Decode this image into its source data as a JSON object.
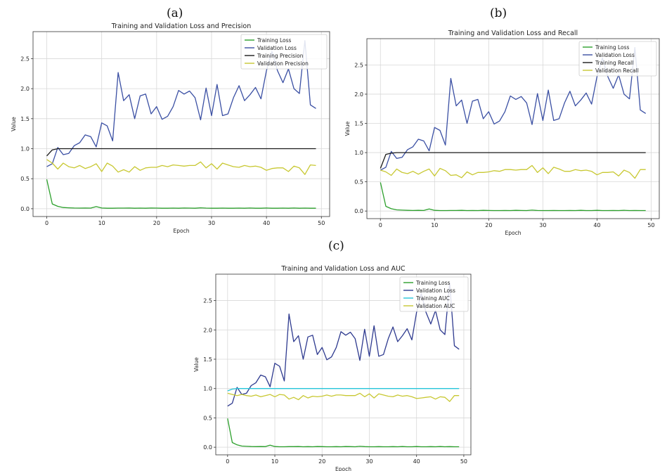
{
  "panels": [
    {
      "letter": "(a)"
    },
    {
      "letter": "(b)"
    },
    {
      "letter": "(c)"
    }
  ],
  "colors": {
    "training_loss": "#2ca02c",
    "validation_loss": "#3a4fa3",
    "training_metric_black": "#1a1a1a",
    "training_auc": "#26c6da",
    "validation_metric": "#c8c832",
    "grid": "#d8d8d8"
  },
  "chart_data": [
    {
      "type": "line",
      "title": "Training and Validation Loss and Precision",
      "xlabel": "Epoch",
      "ylabel": "Value",
      "xlim": [
        -2.5,
        51.5
      ],
      "ylim": [
        -0.13,
        2.95
      ],
      "xticks": [
        0,
        10,
        20,
        30,
        40,
        50
      ],
      "yticks": [
        0.0,
        0.5,
        1.0,
        1.5,
        2.0,
        2.5
      ],
      "grid": true,
      "legend": "top-right",
      "series": [
        {
          "name": "Training Loss",
          "color": "#2ca02c",
          "values": [
            0.49,
            0.08,
            0.04,
            0.02,
            0.015,
            0.012,
            0.01,
            0.012,
            0.01,
            0.035,
            0.012,
            0.008,
            0.008,
            0.01,
            0.01,
            0.012,
            0.008,
            0.01,
            0.008,
            0.012,
            0.01,
            0.008,
            0.008,
            0.01,
            0.008,
            0.012,
            0.01,
            0.008,
            0.015,
            0.01,
            0.008,
            0.008,
            0.01,
            0.008,
            0.008,
            0.01,
            0.008,
            0.012,
            0.008,
            0.008,
            0.012,
            0.008,
            0.008,
            0.01,
            0.008,
            0.012,
            0.008,
            0.01,
            0.008,
            0.008
          ]
        },
        {
          "name": "Validation Loss",
          "color": "#3a4fa3",
          "values": [
            0.7,
            0.75,
            1.02,
            0.9,
            0.92,
            1.05,
            1.1,
            1.23,
            1.2,
            1.03,
            1.43,
            1.38,
            1.13,
            2.27,
            1.8,
            1.9,
            1.5,
            1.88,
            1.91,
            1.58,
            1.7,
            1.49,
            1.54,
            1.7,
            1.97,
            1.91,
            1.96,
            1.85,
            1.48,
            2.01,
            1.55,
            2.07,
            1.55,
            1.58,
            1.85,
            2.05,
            1.8,
            1.9,
            2.02,
            1.83,
            2.3,
            2.62,
            2.3,
            2.1,
            2.33,
            2.0,
            1.92,
            2.8,
            1.73,
            1.67
          ]
        },
        {
          "name": "Training Precision",
          "color": "#1a1a1a",
          "values": [
            0.88,
            0.98,
            1.0,
            1.0,
            1.0,
            1.0,
            1.0,
            1.0,
            1.0,
            1.0,
            1.0,
            1.0,
            1.0,
            1.0,
            1.0,
            1.0,
            1.0,
            1.0,
            1.0,
            1.0,
            1.0,
            1.0,
            1.0,
            1.0,
            1.0,
            1.0,
            1.0,
            1.0,
            1.0,
            1.0,
            1.0,
            1.0,
            1.0,
            1.0,
            1.0,
            1.0,
            1.0,
            1.0,
            1.0,
            1.0,
            1.0,
            1.0,
            1.0,
            1.0,
            1.0,
            1.0,
            1.0,
            1.0,
            1.0,
            1.0
          ]
        },
        {
          "name": "Validation Precision",
          "color": "#c8c832",
          "values": [
            0.82,
            0.76,
            0.66,
            0.76,
            0.7,
            0.68,
            0.72,
            0.67,
            0.7,
            0.75,
            0.62,
            0.76,
            0.71,
            0.61,
            0.65,
            0.61,
            0.7,
            0.64,
            0.68,
            0.69,
            0.69,
            0.72,
            0.7,
            0.73,
            0.72,
            0.71,
            0.72,
            0.72,
            0.78,
            0.68,
            0.75,
            0.66,
            0.76,
            0.73,
            0.7,
            0.69,
            0.72,
            0.7,
            0.71,
            0.69,
            0.64,
            0.67,
            0.68,
            0.68,
            0.62,
            0.71,
            0.68,
            0.57,
            0.73,
            0.72
          ]
        }
      ]
    },
    {
      "type": "line",
      "title": "Training and Validation Loss and Recall",
      "xlabel": "Epoch",
      "ylabel": "Value",
      "xlim": [
        -2.5,
        51.5
      ],
      "ylim": [
        -0.13,
        2.95
      ],
      "xticks": [
        0,
        10,
        20,
        30,
        40,
        50
      ],
      "yticks": [
        0.0,
        0.5,
        1.0,
        1.5,
        2.0,
        2.5
      ],
      "grid": true,
      "legend": "top-right",
      "series": [
        {
          "name": "Training Loss",
          "color": "#2ca02c",
          "values": [
            0.49,
            0.08,
            0.04,
            0.02,
            0.015,
            0.012,
            0.01,
            0.012,
            0.01,
            0.035,
            0.012,
            0.008,
            0.008,
            0.01,
            0.01,
            0.012,
            0.008,
            0.01,
            0.008,
            0.012,
            0.01,
            0.008,
            0.008,
            0.01,
            0.008,
            0.012,
            0.01,
            0.008,
            0.015,
            0.01,
            0.008,
            0.008,
            0.01,
            0.008,
            0.008,
            0.01,
            0.008,
            0.012,
            0.008,
            0.008,
            0.012,
            0.008,
            0.008,
            0.01,
            0.008,
            0.012,
            0.008,
            0.01,
            0.008,
            0.008
          ]
        },
        {
          "name": "Validation Loss",
          "color": "#3a4fa3",
          "values": [
            0.7,
            0.75,
            1.02,
            0.9,
            0.92,
            1.05,
            1.1,
            1.23,
            1.2,
            1.03,
            1.43,
            1.38,
            1.13,
            2.27,
            1.8,
            1.9,
            1.5,
            1.88,
            1.91,
            1.58,
            1.7,
            1.49,
            1.54,
            1.7,
            1.97,
            1.91,
            1.96,
            1.85,
            1.48,
            2.01,
            1.55,
            2.07,
            1.55,
            1.58,
            1.85,
            2.05,
            1.8,
            1.9,
            2.02,
            1.83,
            2.3,
            2.62,
            2.3,
            2.1,
            2.33,
            2.0,
            1.92,
            2.8,
            1.73,
            1.67
          ]
        },
        {
          "name": "Training Recall",
          "color": "#1a1a1a",
          "values": [
            0.73,
            0.97,
            0.99,
            1.0,
            1.0,
            1.0,
            1.0,
            1.0,
            1.0,
            1.0,
            1.0,
            1.0,
            1.0,
            1.0,
            1.0,
            1.0,
            1.0,
            1.0,
            1.0,
            1.0,
            1.0,
            1.0,
            1.0,
            1.0,
            1.0,
            1.0,
            1.0,
            1.0,
            1.0,
            1.0,
            1.0,
            1.0,
            1.0,
            1.0,
            1.0,
            1.0,
            1.0,
            1.0,
            1.0,
            1.0,
            1.0,
            1.0,
            1.0,
            1.0,
            1.0,
            1.0,
            1.0,
            1.0,
            1.0,
            1.0
          ]
        },
        {
          "name": "Validation Recall",
          "color": "#c8c832",
          "values": [
            0.7,
            0.67,
            0.61,
            0.72,
            0.66,
            0.64,
            0.68,
            0.63,
            0.68,
            0.72,
            0.6,
            0.73,
            0.69,
            0.61,
            0.62,
            0.57,
            0.67,
            0.62,
            0.66,
            0.66,
            0.67,
            0.69,
            0.68,
            0.71,
            0.71,
            0.7,
            0.71,
            0.71,
            0.78,
            0.66,
            0.74,
            0.64,
            0.75,
            0.72,
            0.68,
            0.68,
            0.71,
            0.69,
            0.7,
            0.68,
            0.62,
            0.66,
            0.66,
            0.67,
            0.6,
            0.7,
            0.66,
            0.56,
            0.71,
            0.71
          ]
        }
      ]
    },
    {
      "type": "line",
      "title": "Training and Validation Loss and AUC",
      "xlabel": "Epoch",
      "ylabel": "Value",
      "xlim": [
        -2.5,
        51.5
      ],
      "ylim": [
        -0.13,
        2.95
      ],
      "xticks": [
        0,
        10,
        20,
        30,
        40,
        50
      ],
      "yticks": [
        0.0,
        0.5,
        1.0,
        1.5,
        2.0,
        2.5
      ],
      "grid": true,
      "legend": "top-right",
      "series": [
        {
          "name": "Training Loss",
          "color": "#2ca02c",
          "values": [
            0.49,
            0.08,
            0.04,
            0.02,
            0.015,
            0.012,
            0.01,
            0.012,
            0.01,
            0.035,
            0.012,
            0.008,
            0.008,
            0.01,
            0.01,
            0.012,
            0.008,
            0.01,
            0.008,
            0.012,
            0.01,
            0.008,
            0.008,
            0.01,
            0.008,
            0.012,
            0.01,
            0.008,
            0.015,
            0.01,
            0.008,
            0.008,
            0.01,
            0.008,
            0.008,
            0.01,
            0.008,
            0.012,
            0.008,
            0.008,
            0.012,
            0.008,
            0.008,
            0.01,
            0.008,
            0.012,
            0.008,
            0.01,
            0.008,
            0.008
          ]
        },
        {
          "name": "Validation Loss",
          "color": "#2e3a8f",
          "values": [
            0.7,
            0.75,
            1.02,
            0.9,
            0.92,
            1.05,
            1.1,
            1.23,
            1.2,
            1.03,
            1.43,
            1.38,
            1.13,
            2.27,
            1.8,
            1.9,
            1.5,
            1.88,
            1.91,
            1.58,
            1.7,
            1.49,
            1.54,
            1.7,
            1.97,
            1.91,
            1.96,
            1.85,
            1.48,
            2.01,
            1.55,
            2.07,
            1.55,
            1.58,
            1.85,
            2.05,
            1.8,
            1.9,
            2.02,
            1.83,
            2.3,
            2.62,
            2.3,
            2.1,
            2.33,
            2.0,
            1.92,
            2.8,
            1.73,
            1.67
          ]
        },
        {
          "name": "Training AUC",
          "color": "#26c6da",
          "values": [
            0.96,
            0.99,
            1.0,
            1.0,
            1.0,
            1.0,
            1.0,
            1.0,
            1.0,
            1.0,
            1.0,
            1.0,
            1.0,
            1.0,
            1.0,
            1.0,
            1.0,
            1.0,
            1.0,
            1.0,
            1.0,
            1.0,
            1.0,
            1.0,
            1.0,
            1.0,
            1.0,
            1.0,
            1.0,
            1.0,
            1.0,
            1.0,
            1.0,
            1.0,
            1.0,
            1.0,
            1.0,
            1.0,
            1.0,
            1.0,
            1.0,
            1.0,
            1.0,
            1.0,
            1.0,
            1.0,
            1.0,
            1.0,
            1.0,
            1.0
          ]
        },
        {
          "name": "Validation AUC",
          "color": "#c8c832",
          "values": [
            0.92,
            0.9,
            0.88,
            0.9,
            0.88,
            0.87,
            0.89,
            0.86,
            0.88,
            0.9,
            0.86,
            0.9,
            0.89,
            0.82,
            0.85,
            0.81,
            0.88,
            0.84,
            0.87,
            0.86,
            0.87,
            0.89,
            0.87,
            0.89,
            0.89,
            0.88,
            0.88,
            0.88,
            0.92,
            0.86,
            0.91,
            0.84,
            0.91,
            0.89,
            0.87,
            0.86,
            0.89,
            0.87,
            0.88,
            0.86,
            0.83,
            0.84,
            0.85,
            0.86,
            0.82,
            0.86,
            0.85,
            0.78,
            0.88,
            0.88
          ]
        }
      ]
    }
  ]
}
